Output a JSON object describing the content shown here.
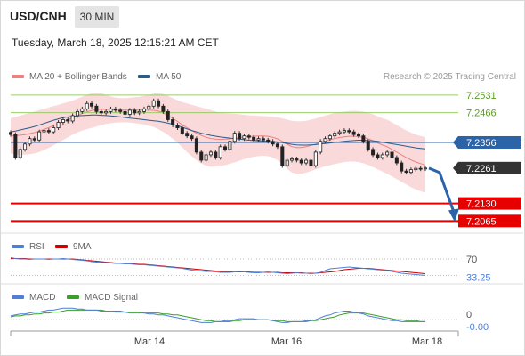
{
  "header": {
    "symbol": "USD/CNH",
    "timeframe": "30 MIN",
    "datetime": "Tuesday, March 18, 2025 12:15:21 AM CET",
    "source": "Research © 2025 Trading Central"
  },
  "colors": {
    "bollinger": "#f08080",
    "ma50": "#2e5c8a",
    "resistance": "#9acd6a",
    "support": "#e60000",
    "pivot": "#2b63a8",
    "last": "#333333",
    "rsi": "#4f7fd6",
    "ma9": "#d00000",
    "macd": "#4f7fd6",
    "signal": "#3aa02a",
    "arrow": "#2b63a8"
  },
  "chart_data": [
    {
      "type": "candlestick",
      "legend": [
        "MA 20 + Bollinger Bands",
        "MA 50"
      ],
      "x_labels": [
        "Mar 14",
        "Mar 16",
        "Mar 18"
      ],
      "ylim": [
        7.202,
        7.257
      ],
      "levels": [
        {
          "value": 7.2531,
          "label": "7.2531",
          "kind": "resistance"
        },
        {
          "value": 7.2466,
          "label": "7.2466",
          "kind": "resistance"
        },
        {
          "value": 7.2356,
          "label": "7.2356",
          "kind": "pivot"
        },
        {
          "value": 7.2261,
          "label": "7.2261",
          "kind": "last"
        },
        {
          "value": 7.213,
          "label": "7.2130",
          "kind": "support"
        },
        {
          "value": 7.2065,
          "label": "7.2065",
          "kind": "support"
        }
      ],
      "close": [
        7.2385,
        7.23,
        7.233,
        7.235,
        7.237,
        7.2365,
        7.2395,
        7.24,
        7.2395,
        7.241,
        7.243,
        7.244,
        7.2435,
        7.2455,
        7.247,
        7.248,
        7.25,
        7.249,
        7.247,
        7.2465,
        7.247,
        7.248,
        7.2475,
        7.247,
        7.246,
        7.2475,
        7.2465,
        7.247,
        7.248,
        7.249,
        7.251,
        7.249,
        7.247,
        7.244,
        7.242,
        7.241,
        7.239,
        7.238,
        7.237,
        7.232,
        7.229,
        7.231,
        7.232,
        7.23,
        7.234,
        7.233,
        7.236,
        7.239,
        7.237,
        7.238,
        7.2375,
        7.2365,
        7.237,
        7.2365,
        7.236,
        7.235,
        7.234,
        7.227,
        7.229,
        7.2295,
        7.229,
        7.228,
        7.229,
        7.227,
        7.232,
        7.236,
        7.237,
        7.238,
        7.239,
        7.2395,
        7.24,
        7.2395,
        7.2385,
        7.238,
        7.236,
        7.233,
        7.231,
        7.23,
        7.231,
        7.232,
        7.23,
        7.228,
        7.225,
        7.2245,
        7.2255,
        7.226,
        7.2258,
        7.2261
      ],
      "bb_upper": [
        7.2445,
        7.245,
        7.2455,
        7.246,
        7.2465,
        7.247,
        7.2475,
        7.248,
        7.2485,
        7.249,
        7.2495,
        7.25,
        7.2505,
        7.251,
        7.2518,
        7.2525,
        7.2532,
        7.2538,
        7.254,
        7.2538,
        7.2532,
        7.2526,
        7.2522,
        7.252,
        7.252,
        7.2521,
        7.2523,
        7.2525,
        7.2528,
        7.2532,
        7.2536,
        7.2538,
        7.2535,
        7.2528,
        7.252,
        7.2512,
        7.2505,
        7.25,
        7.2495,
        7.249,
        7.2485,
        7.248,
        7.2475,
        7.247,
        7.2466,
        7.2464,
        7.2463,
        7.2462,
        7.246,
        7.2458,
        7.2456,
        7.2455,
        7.2454,
        7.2453,
        7.2452,
        7.245,
        7.2448,
        7.2445,
        7.244,
        7.2436,
        7.2434,
        7.2434,
        7.2436,
        7.244,
        7.2444,
        7.245,
        7.2455,
        7.246,
        7.2465,
        7.2468,
        7.247,
        7.2472,
        7.2473,
        7.2472,
        7.247,
        7.2466,
        7.246,
        7.2452,
        7.2445,
        7.244,
        7.243,
        7.242,
        7.241,
        7.24,
        7.2392,
        7.2385,
        7.238,
        7.2375
      ],
      "bb_lower": [
        7.2315,
        7.2312,
        7.231,
        7.231,
        7.2312,
        7.2315,
        7.232,
        7.2328,
        7.2336,
        7.2345,
        7.2355,
        7.2365,
        7.2375,
        7.2385,
        7.2393,
        7.24,
        7.2405,
        7.241,
        7.2415,
        7.242,
        7.2424,
        7.2427,
        7.2429,
        7.243,
        7.243,
        7.2429,
        7.2427,
        7.2425,
        7.2422,
        7.2418,
        7.2413,
        7.2405,
        7.2395,
        7.2383,
        7.237,
        7.2355,
        7.2338,
        7.232,
        7.2305,
        7.229,
        7.2278,
        7.227,
        7.2266,
        7.2266,
        7.2268,
        7.2272,
        7.2277,
        7.2282,
        7.2288,
        7.2294,
        7.2299,
        7.2303,
        7.2306,
        7.2307,
        7.2305,
        7.23,
        7.229,
        7.2275,
        7.2258,
        7.2245,
        7.224,
        7.224,
        7.2244,
        7.225,
        7.2256,
        7.2262,
        7.2268,
        7.2272,
        7.2276,
        7.228,
        7.2283,
        7.2285,
        7.2285,
        7.2283,
        7.2279,
        7.2273,
        7.2265,
        7.2256,
        7.2248,
        7.224,
        7.223,
        7.222,
        7.221,
        7.22,
        7.219,
        7.2182,
        7.2175,
        7.217
      ],
      "ma50": [
        7.2395,
        7.2398,
        7.2402,
        7.2406,
        7.241,
        7.2415,
        7.242,
        7.2426,
        7.2432,
        7.2438,
        7.2443,
        7.2447,
        7.245,
        7.2452,
        7.2454,
        7.2455,
        7.2456,
        7.2457,
        7.2457,
        7.2456,
        7.2455,
        7.2454,
        7.2452,
        7.245,
        7.2448,
        7.2446,
        7.2444,
        7.2442,
        7.244,
        7.2438,
        7.2436,
        7.2434,
        7.2431,
        7.2427,
        7.2423,
        7.2418,
        7.2412,
        7.2406,
        7.24,
        7.2395,
        7.239,
        7.2386,
        7.2382,
        7.2379,
        7.2376,
        7.2374,
        7.2372,
        7.237,
        7.2368,
        7.2366,
        7.2364,
        7.2363,
        7.2362,
        7.2361,
        7.236,
        7.2359,
        7.2358,
        7.2355,
        7.2352,
        7.2349,
        7.2347,
        7.2346,
        7.2346,
        7.2347,
        7.2348,
        7.235,
        7.2352,
        7.2354,
        7.2356,
        7.2358,
        7.236,
        7.2362,
        7.2363,
        7.2364,
        7.2364,
        7.2363,
        7.2362,
        7.236,
        7.2357,
        7.2354,
        7.2351,
        7.2348,
        7.2345,
        7.2342,
        7.2339,
        7.2336,
        7.2334,
        7.2332
      ]
    },
    {
      "type": "line",
      "legend": [
        "RSI",
        "9MA"
      ],
      "levels": [
        {
          "value": 70,
          "label": "70"
        }
      ],
      "last_label": "33.25",
      "ylim": [
        20,
        80
      ],
      "rsi": [
        73,
        71,
        70,
        70,
        69,
        70,
        70,
        70,
        69,
        70,
        70,
        71,
        70,
        69,
        68,
        67,
        66,
        64,
        63,
        62,
        62,
        61,
        60,
        60,
        59,
        59,
        58,
        57,
        57,
        56,
        55,
        54,
        53,
        52,
        51,
        50,
        49,
        47,
        45,
        44,
        43,
        42,
        42,
        41,
        40,
        40,
        40,
        41,
        42,
        41,
        40,
        39,
        39,
        40,
        41,
        40,
        39,
        38,
        37,
        38,
        39,
        38,
        38,
        37,
        38,
        40,
        44,
        48,
        49,
        50,
        51,
        52,
        51,
        50,
        49,
        48,
        47,
        46,
        45,
        44,
        42,
        40,
        38,
        37,
        36,
        35,
        34,
        33.25
      ],
      "ma9": [
        71,
        71,
        71,
        71,
        70,
        70,
        70,
        70,
        70,
        70,
        70,
        70,
        70,
        70,
        69,
        68,
        67,
        66,
        65,
        64,
        63,
        62,
        61,
        61,
        60,
        60,
        59,
        58,
        58,
        57,
        56,
        55,
        54,
        53,
        52,
        51,
        50,
        49,
        48,
        47,
        46,
        45,
        44,
        43,
        42,
        42,
        41,
        41,
        41,
        41,
        41,
        40,
        40,
        40,
        40,
        40,
        40,
        39,
        39,
        39,
        39,
        39,
        38,
        38,
        38,
        39,
        40,
        41,
        42,
        44,
        46,
        47,
        48,
        49,
        49,
        49,
        48,
        47,
        46,
        45,
        44,
        43,
        42,
        41,
        40,
        39,
        38,
        37
      ]
    },
    {
      "type": "line",
      "legend": [
        "MACD",
        "MACD Signal"
      ],
      "levels": [
        {
          "value": 0,
          "label": "0"
        }
      ],
      "last_label": "-0.00",
      "ylim": [
        -0.01,
        0.015
      ],
      "macd": [
        0.004,
        0.005,
        0.006,
        0.006,
        0.007,
        0.008,
        0.008,
        0.009,
        0.01,
        0.01,
        0.011,
        0.012,
        0.012,
        0.012,
        0.011,
        0.011,
        0.01,
        0.01,
        0.01,
        0.009,
        0.009,
        0.009,
        0.008,
        0.008,
        0.008,
        0.007,
        0.007,
        0.007,
        0.007,
        0.006,
        0.006,
        0.005,
        0.005,
        0.004,
        0.003,
        0.002,
        0.001,
        0.0,
        -0.001,
        -0.002,
        -0.003,
        -0.003,
        -0.003,
        -0.002,
        -0.002,
        -0.001,
        -0.001,
        0.0,
        0.001,
        0.001,
        0.001,
        0.001,
        0.0,
        0.0,
        0.0,
        -0.001,
        -0.002,
        -0.003,
        -0.003,
        -0.002,
        -0.002,
        -0.002,
        -0.001,
        -0.001,
        0.0,
        0.002,
        0.004,
        0.005,
        0.007,
        0.008,
        0.009,
        0.009,
        0.008,
        0.007,
        0.006,
        0.004,
        0.003,
        0.002,
        0.001,
        0.0,
        -0.001,
        -0.001,
        -0.002,
        -0.002,
        -0.002,
        -0.002,
        -0.002,
        -0.002
      ],
      "signal": [
        0.003,
        0.004,
        0.004,
        0.005,
        0.005,
        0.006,
        0.006,
        0.007,
        0.007,
        0.008,
        0.008,
        0.009,
        0.01,
        0.01,
        0.01,
        0.01,
        0.01,
        0.01,
        0.01,
        0.01,
        0.009,
        0.009,
        0.009,
        0.009,
        0.008,
        0.008,
        0.008,
        0.008,
        0.007,
        0.007,
        0.007,
        0.007,
        0.006,
        0.006,
        0.005,
        0.005,
        0.004,
        0.003,
        0.002,
        0.001,
        0.0,
        -0.001,
        -0.001,
        -0.002,
        -0.002,
        -0.002,
        -0.002,
        -0.001,
        -0.001,
        0.0,
        0.0,
        0.0,
        0.0,
        0.0,
        0.0,
        -0.001,
        -0.001,
        -0.001,
        -0.002,
        -0.002,
        -0.002,
        -0.002,
        -0.002,
        -0.001,
        -0.001,
        0.0,
        0.001,
        0.002,
        0.003,
        0.005,
        0.006,
        0.007,
        0.007,
        0.007,
        0.007,
        0.006,
        0.005,
        0.004,
        0.003,
        0.002,
        0.001,
        0.0,
        0.0,
        -0.001,
        -0.001,
        -0.001,
        -0.002,
        -0.002
      ]
    }
  ]
}
